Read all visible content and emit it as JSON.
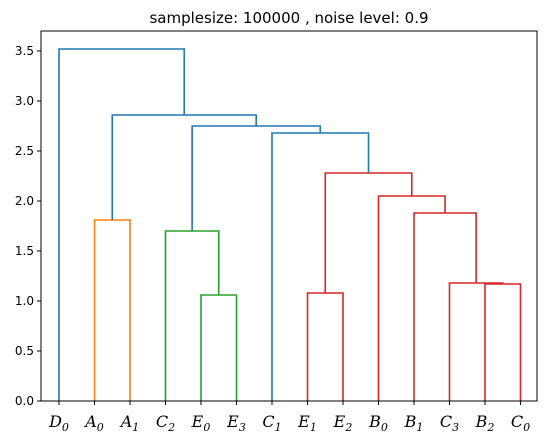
{
  "chart_data": {
    "type": "dendrogram",
    "title": "samplesize: 100000 , noise level: 0.9",
    "xlabel": "",
    "ylabel": "",
    "ylim": [
      0,
      3.7
    ],
    "yticks": [
      0.0,
      0.5,
      1.0,
      1.5,
      2.0,
      2.5,
      3.0,
      3.5
    ],
    "ytick_labels": [
      "0.0",
      "0.5",
      "1.0",
      "1.5",
      "2.0",
      "2.5",
      "3.0",
      "3.5"
    ],
    "leaves": [
      {
        "base": "D",
        "sub": "0"
      },
      {
        "base": "A",
        "sub": "0"
      },
      {
        "base": "A",
        "sub": "1"
      },
      {
        "base": "C",
        "sub": "2"
      },
      {
        "base": "E",
        "sub": "0"
      },
      {
        "base": "E",
        "sub": "3"
      },
      {
        "base": "C",
        "sub": "1"
      },
      {
        "base": "E",
        "sub": "1"
      },
      {
        "base": "E",
        "sub": "2"
      },
      {
        "base": "B",
        "sub": "0"
      },
      {
        "base": "B",
        "sub": "1"
      },
      {
        "base": "C",
        "sub": "3"
      },
      {
        "base": "B",
        "sub": "2"
      },
      {
        "base": "C",
        "sub": "0"
      }
    ],
    "merges": [
      {
        "left": "A0",
        "right": "A1",
        "height": 1.81,
        "color": "#ff7f0e"
      },
      {
        "left": "E0",
        "right": "E3",
        "height": 1.06,
        "color": "#2ca02c"
      },
      {
        "left": "C2",
        "right": "(E0,E3)",
        "height": 1.7,
        "color": "#2ca02c"
      },
      {
        "left": "E1",
        "right": "E2",
        "height": 1.08,
        "color": "#d62728"
      },
      {
        "left": "B2",
        "right": "C0",
        "height": 1.17,
        "color": "#d62728"
      },
      {
        "left": "C3",
        "right": "(B2,C0)",
        "height": 1.18,
        "color": "#d62728"
      },
      {
        "left": "B1",
        "right": "(C3,B2,C0)",
        "height": 1.88,
        "color": "#d62728"
      },
      {
        "left": "B0",
        "right": "(B1,C3,B2,C0)",
        "height": 2.05,
        "color": "#d62728"
      },
      {
        "left": "(E1,E2)",
        "right": "(B0,B1,C3,B2,C0)",
        "height": 2.28,
        "color": "#d62728"
      },
      {
        "left": "C1",
        "right": "(E1,E2,B0,B1,C3,B2,C0)",
        "height": 2.68,
        "color": "#1f77b4"
      },
      {
        "left": "(C2,E0,E3)",
        "right": "(C1,...)",
        "height": 2.75,
        "color": "#1f77b4"
      },
      {
        "left": "(A0,A1)",
        "right": "(C2,...)",
        "height": 2.86,
        "color": "#1f77b4"
      },
      {
        "left": "D0",
        "right": "(A0,...)",
        "height": 3.52,
        "color": "#1f77b4"
      }
    ]
  }
}
